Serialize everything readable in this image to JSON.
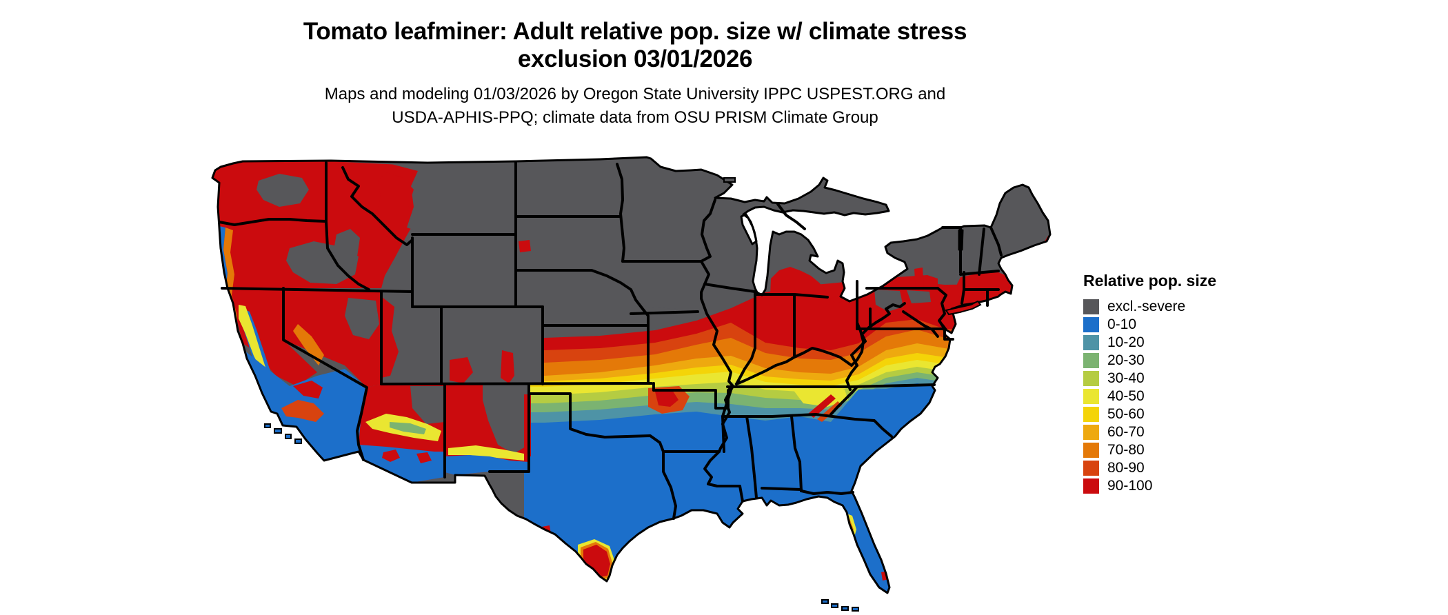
{
  "header": {
    "title_line1": "Tomato leafminer: Adult relative pop. size w/ climate stress",
    "title_line2": "exclusion 03/01/2026",
    "subtitle_line1": "Maps and modeling 01/03/2026 by Oregon State University IPPC USPEST.ORG and",
    "subtitle_line2": "USDA-APHIS-PPQ; climate data from OSU PRISM Climate Group"
  },
  "colors": {
    "gray": "#57575A",
    "blue": "#1C6FCA",
    "teal": "#4E93A6",
    "green": "#7BB371",
    "yg": "#B5CC42",
    "yellow": "#EAE631",
    "gold": "#F4D408",
    "amber": "#EEA90F",
    "orange": "#E47908",
    "verm": "#D8430F",
    "red": "#CB0B0E",
    "border": "#000000"
  },
  "legend": {
    "title": "Relative pop. size",
    "items": [
      {
        "label": "excl.-severe",
        "color_key": "gray"
      },
      {
        "label": "0-10",
        "color_key": "blue"
      },
      {
        "label": "10-20",
        "color_key": "teal"
      },
      {
        "label": "20-30",
        "color_key": "green"
      },
      {
        "label": "30-40",
        "color_key": "yg"
      },
      {
        "label": "40-50",
        "color_key": "yellow"
      },
      {
        "label": "50-60",
        "color_key": "gold"
      },
      {
        "label": "60-70",
        "color_key": "amber"
      },
      {
        "label": "70-80",
        "color_key": "orange"
      },
      {
        "label": "80-90",
        "color_key": "verm"
      },
      {
        "label": "90-100",
        "color_key": "red"
      }
    ]
  }
}
